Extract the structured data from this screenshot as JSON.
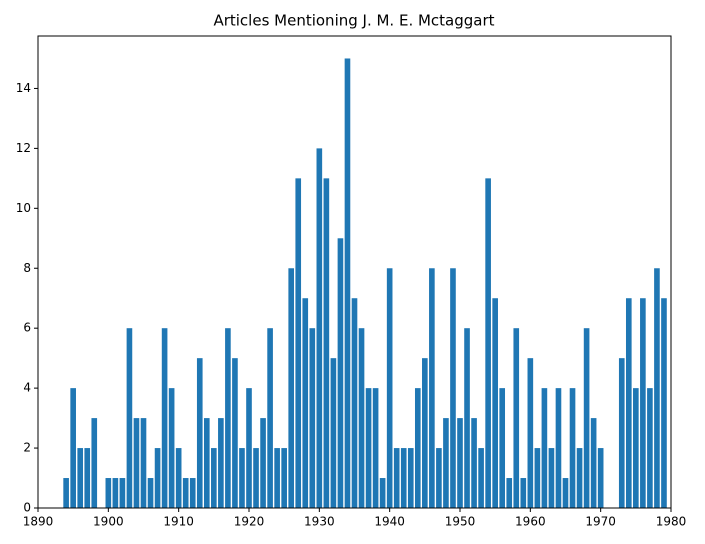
{
  "chart_data": {
    "type": "bar",
    "title": "Articles Mentioning J. M. E. Mctaggart",
    "x": [
      1894,
      1895,
      1896,
      1897,
      1898,
      1900,
      1901,
      1902,
      1903,
      1904,
      1905,
      1906,
      1907,
      1908,
      1909,
      1910,
      1911,
      1912,
      1913,
      1914,
      1915,
      1916,
      1917,
      1918,
      1919,
      1920,
      1921,
      1922,
      1923,
      1924,
      1925,
      1926,
      1927,
      1928,
      1929,
      1930,
      1931,
      1932,
      1933,
      1934,
      1935,
      1936,
      1937,
      1938,
      1939,
      1940,
      1941,
      1942,
      1943,
      1944,
      1945,
      1946,
      1947,
      1948,
      1949,
      1950,
      1951,
      1952,
      1953,
      1954,
      1955,
      1956,
      1957,
      1958,
      1959,
      1960,
      1961,
      1962,
      1963,
      1964,
      1965,
      1966,
      1967,
      1968,
      1969,
      1970,
      1973,
      1974,
      1975,
      1976,
      1977,
      1978,
      1979
    ],
    "values": [
      1,
      4,
      2,
      2,
      3,
      1,
      1,
      1,
      6,
      3,
      3,
      1,
      2,
      6,
      4,
      2,
      1,
      1,
      5,
      3,
      2,
      3,
      6,
      5,
      2,
      4,
      2,
      3,
      6,
      2,
      2,
      8,
      11,
      7,
      6,
      12,
      11,
      5,
      9,
      15,
      7,
      6,
      4,
      4,
      1,
      8,
      2,
      2,
      2,
      4,
      5,
      8,
      2,
      3,
      8,
      3,
      6,
      3,
      2,
      11,
      7,
      4,
      1,
      6,
      1,
      5,
      2,
      4,
      2,
      4,
      1,
      4,
      2,
      6,
      3,
      2,
      5,
      7,
      4,
      7,
      4,
      8,
      7
    ],
    "color": "#1f77b4",
    "xlim": [
      1890,
      1980
    ],
    "xticks": [
      1890,
      1900,
      1910,
      1920,
      1930,
      1940,
      1950,
      1960,
      1970,
      1980
    ],
    "ylim": [
      0,
      15.75
    ],
    "yticks": [
      0,
      2,
      4,
      6,
      8,
      10,
      12,
      14
    ]
  }
}
